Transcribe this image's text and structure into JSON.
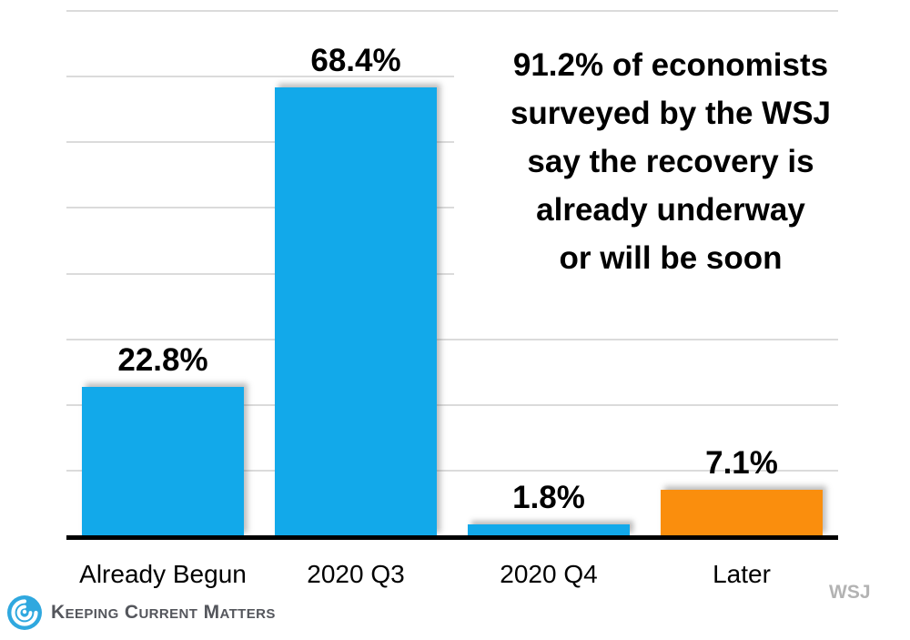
{
  "chart_data": {
    "type": "bar",
    "title": "",
    "categories": [
      "Already Begun",
      "2020 Q3",
      "2020 Q4",
      "Later"
    ],
    "values": [
      22.8,
      68.4,
      1.8,
      7.1
    ],
    "value_labels": [
      "22.8%",
      "68.4%",
      "1.8%",
      "7.1%"
    ],
    "bar_colors": [
      "#12A9EA",
      "#12A9EA",
      "#12A9EA",
      "#FA8E0D"
    ],
    "ylim": [
      0,
      80
    ],
    "gridline_step": 10,
    "grid": true,
    "legend_position": "none",
    "xlabel": "",
    "ylabel": "",
    "annotation": "91.2% of economists surveyed by the WSJ say the recovery is already underway or will be soon",
    "source": "WSJ"
  },
  "annotation": {
    "lines": [
      "91.2% of economists",
      "surveyed by the WSJ",
      "say the recovery is",
      "already underway",
      "or will be soon"
    ]
  },
  "footer": {
    "logo_text": "Keeping Current Matters",
    "source_label": "WSJ"
  },
  "colors": {
    "bar_blue": "#12A9EA",
    "bar_orange": "#FA8E0D",
    "gridline": "#DBDBDB",
    "axis": "#000000",
    "source_gray": "#B3B3B3",
    "logo_blue": "#2FA8DF",
    "logo_text_gray": "#54565C"
  }
}
